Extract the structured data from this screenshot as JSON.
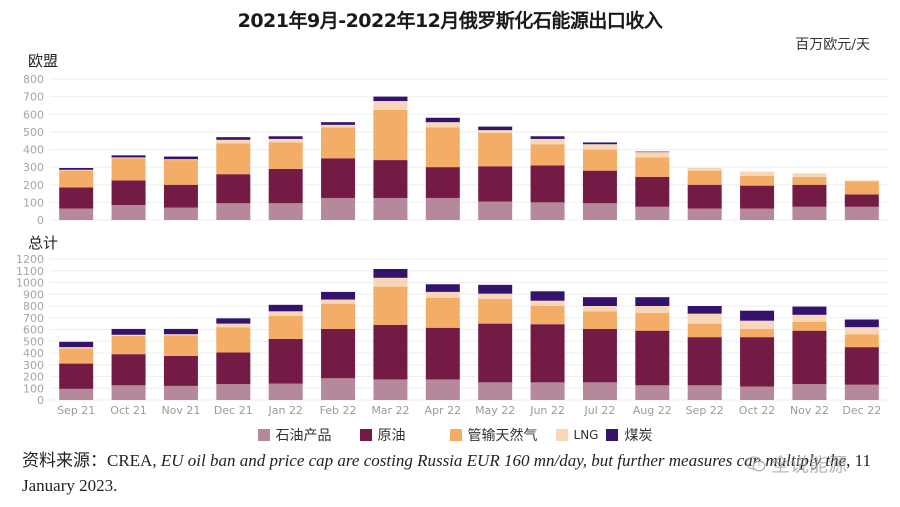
{
  "header": {
    "title": "2021年9月-2022年12月俄罗斯化石能源出口收入",
    "unit": "百万欧元/天"
  },
  "legend": [
    {
      "label": "石油产品",
      "color": "#b5899b"
    },
    {
      "label": "原油",
      "color": "#741b45"
    },
    {
      "label": "管输天然气",
      "color": "#f4ad66"
    },
    {
      "label": "LNG",
      "color": "#f8d6b8"
    },
    {
      "label": "煤炭",
      "color": "#33136b"
    }
  ],
  "source": {
    "prefix": "资料来源：CREA, ",
    "italic": "EU oil ban and price cap are costing Russia EUR 160 mn/day, but further measures can multiply the",
    "suffix": ", 11 January 2023."
  },
  "watermark": {
    "text": "全说能源",
    "icon": "wechat-icon"
  },
  "chart_data": [
    {
      "type": "bar",
      "stacked": true,
      "panel_label": "欧盟",
      "title": "2021年9月-2022年12月俄罗斯化石能源出口收入",
      "ylabel": "百万欧元/天",
      "xlabel": "",
      "ylim": [
        0,
        800
      ],
      "yticks": [
        0,
        100,
        200,
        300,
        400,
        500,
        600,
        700,
        800
      ],
      "grid": true,
      "legend_position": "bottom",
      "categories": [
        "Sep 21",
        "Oct 21",
        "Nov 21",
        "Dec 21",
        "Jan 22",
        "Feb 22",
        "Mar 22",
        "Apr 22",
        "May 22",
        "Jun 22",
        "Jul 22",
        "Aug 22",
        "Sep 22",
        "Oct 22",
        "Nov 22",
        "Dec 22"
      ],
      "show_xticks": false,
      "series": [
        {
          "name": "石油产品",
          "color": "#b5899b",
          "values": [
            65,
            85,
            70,
            95,
            95,
            125,
            125,
            125,
            105,
            100,
            95,
            75,
            65,
            65,
            75,
            75
          ]
        },
        {
          "name": "原油",
          "color": "#741b45",
          "values": [
            120,
            140,
            130,
            165,
            195,
            225,
            215,
            175,
            200,
            210,
            185,
            170,
            135,
            130,
            125,
            70
          ]
        },
        {
          "name": "管输天然气",
          "color": "#f4ad66",
          "values": [
            95,
            125,
            140,
            175,
            150,
            175,
            285,
            225,
            190,
            120,
            120,
            110,
            80,
            55,
            45,
            75
          ]
        },
        {
          "name": "LNG",
          "color": "#f8d6b8",
          "values": [
            5,
            5,
            5,
            20,
            20,
            15,
            50,
            30,
            15,
            30,
            30,
            30,
            15,
            25,
            20,
            5
          ]
        },
        {
          "name": "煤炭",
          "color": "#33136b",
          "values": [
            10,
            12,
            15,
            15,
            15,
            15,
            25,
            25,
            20,
            15,
            10,
            3,
            0,
            0,
            0,
            0
          ]
        }
      ]
    },
    {
      "type": "bar",
      "stacked": true,
      "panel_label": "总计",
      "xlabel": "",
      "ylabel": "百万欧元/天",
      "ylim": [
        0,
        1200
      ],
      "yticks": [
        0,
        100,
        200,
        300,
        400,
        500,
        600,
        700,
        800,
        900,
        1000,
        1100,
        1200
      ],
      "grid": true,
      "legend_position": "bottom",
      "categories": [
        "Sep 21",
        "Oct 21",
        "Nov 21",
        "Dec 21",
        "Jan 22",
        "Feb 22",
        "Mar 22",
        "Apr 22",
        "May 22",
        "Jun 22",
        "Jul 22",
        "Aug 22",
        "Sep 22",
        "Oct 22",
        "Nov 22",
        "Dec 22"
      ],
      "show_xticks": true,
      "series": [
        {
          "name": "石油产品",
          "color": "#b5899b",
          "values": [
            95,
            125,
            120,
            135,
            140,
            185,
            175,
            175,
            150,
            150,
            150,
            125,
            125,
            115,
            135,
            130
          ]
        },
        {
          "name": "原油",
          "color": "#741b45",
          "values": [
            215,
            265,
            255,
            270,
            380,
            420,
            465,
            440,
            500,
            495,
            455,
            465,
            410,
            420,
            455,
            320
          ]
        },
        {
          "name": "管输天然气",
          "color": "#f4ad66",
          "values": [
            130,
            155,
            175,
            215,
            195,
            215,
            325,
            255,
            210,
            155,
            150,
            150,
            115,
            70,
            75,
            110
          ]
        },
        {
          "name": "LNG",
          "color": "#f8d6b8",
          "values": [
            10,
            10,
            10,
            30,
            40,
            35,
            75,
            50,
            45,
            45,
            45,
            60,
            85,
            70,
            60,
            60
          ]
        },
        {
          "name": "煤炭",
          "color": "#33136b",
          "values": [
            45,
            50,
            45,
            45,
            55,
            65,
            75,
            65,
            75,
            80,
            75,
            75,
            65,
            85,
            70,
            65
          ]
        }
      ]
    }
  ]
}
